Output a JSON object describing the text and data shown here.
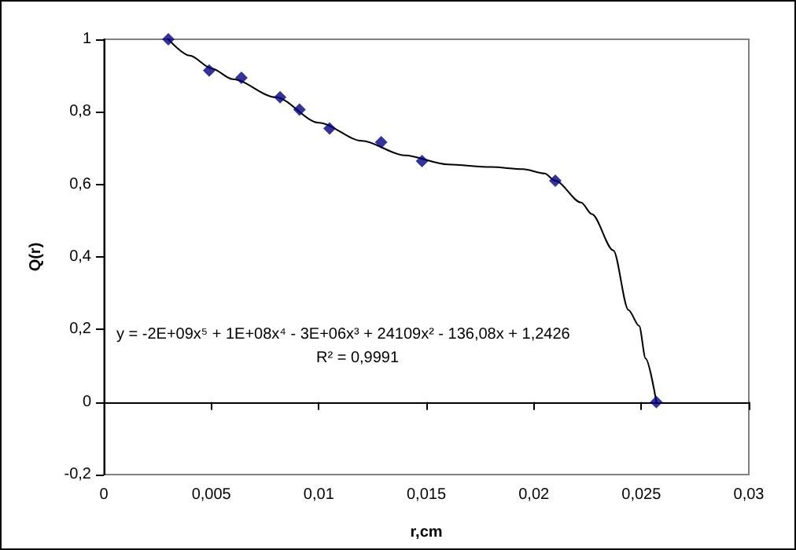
{
  "chart_data": {
    "type": "scatter",
    "xlabel": "r,cm",
    "ylabel": "Q(r)",
    "annotations": [
      "y = -2E+09x⁵ + 1E+08x⁴ - 3E+06x³ + 24109x² - 136,08x + 1,2426",
      "R² = 0,9991"
    ],
    "xlim": [
      0,
      0.03
    ],
    "xticks": [
      0,
      {
        "value": 0.005,
        "label": "0,005"
      },
      {
        "value": 0.01,
        "label": "0,01"
      },
      {
        "value": 0.015,
        "label": "0,015"
      },
      {
        "value": 0.02,
        "label": "0,02"
      },
      {
        "value": 0.025,
        "label": "0,025"
      },
      {
        "value": 0.03,
        "label": "0,03"
      }
    ],
    "ylim": [
      -0.2,
      1
    ],
    "yticks": [
      {
        "value": -0.2,
        "label": "-0,2"
      },
      0,
      {
        "value": 0.2,
        "label": "0,2"
      },
      {
        "value": 0.4,
        "label": "0,4"
      },
      {
        "value": 0.6,
        "label": "0,6"
      },
      {
        "value": 0.8,
        "label": "0,8"
      },
      1
    ],
    "series": [
      {
        "color": "#000080",
        "marker": "diamond",
        "x": [
          0.003,
          0.0049,
          0.0064,
          0.0082,
          0.0091,
          0.0105,
          0.0129,
          0.0148,
          0.021,
          0.0257
        ],
        "values": [
          1,
          0.914,
          0.894,
          0.84,
          0.806,
          0.754,
          0.716,
          0.664,
          0.61,
          0
        ]
      },
      {
        "type": "line",
        "color": "#000000",
        "marker": "none",
        "line_style": "solid",
        "x": [
          0.003,
          0.004,
          0.005,
          0.006,
          0.008,
          0.01,
          0.012,
          0.014,
          0.016,
          0.018,
          0.0195,
          0.0205,
          0.021,
          0.0222,
          0.0227,
          0.0237,
          0.0244,
          0.0249,
          0.0252,
          0.0257
        ],
        "values": [
          1,
          0.955,
          0.92,
          0.89,
          0.84,
          0.77,
          0.72,
          0.68,
          0.655,
          0.648,
          0.642,
          0.63,
          0.61,
          0.55,
          0.518,
          0.418,
          0.254,
          0.21,
          0.12,
          0
        ]
      }
    ]
  }
}
